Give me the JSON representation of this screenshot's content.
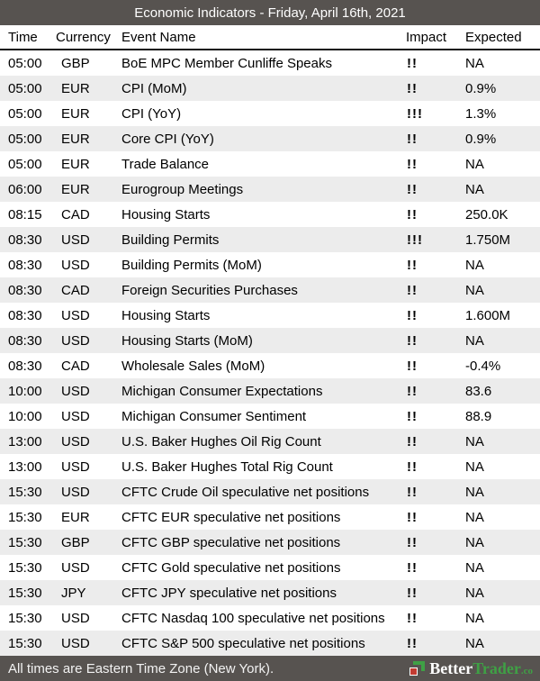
{
  "title_bar": {
    "title": "Economic Indicators - Friday, April 16th, 2021"
  },
  "table": {
    "columns": {
      "time": "Time",
      "currency": "Currency",
      "event": "Event Name",
      "impact": "Impact",
      "expected": "Expected"
    },
    "rows": [
      {
        "time": "05:00",
        "currency": "GBP",
        "event": "BoE MPC Member Cunliffe Speaks",
        "impact": "!!",
        "expected": "NA"
      },
      {
        "time": "05:00",
        "currency": "EUR",
        "event": "CPI (MoM)",
        "impact": "!!",
        "expected": "0.9%"
      },
      {
        "time": "05:00",
        "currency": "EUR",
        "event": "CPI (YoY)",
        "impact": "!!!",
        "expected": "1.3%"
      },
      {
        "time": "05:00",
        "currency": "EUR",
        "event": "Core CPI (YoY)",
        "impact": "!!",
        "expected": "0.9%"
      },
      {
        "time": "05:00",
        "currency": "EUR",
        "event": "Trade Balance",
        "impact": "!!",
        "expected": "NA"
      },
      {
        "time": "06:00",
        "currency": "EUR",
        "event": "Eurogroup Meetings",
        "impact": "!!",
        "expected": "NA"
      },
      {
        "time": "08:15",
        "currency": "CAD",
        "event": "Housing Starts",
        "impact": "!!",
        "expected": "250.0K"
      },
      {
        "time": "08:30",
        "currency": "USD",
        "event": "Building Permits",
        "impact": "!!!",
        "expected": "1.750M"
      },
      {
        "time": "08:30",
        "currency": "USD",
        "event": "Building Permits (MoM)",
        "impact": "!!",
        "expected": "NA"
      },
      {
        "time": "08:30",
        "currency": "CAD",
        "event": "Foreign Securities Purchases",
        "impact": "!!",
        "expected": "NA"
      },
      {
        "time": "08:30",
        "currency": "USD",
        "event": "Housing Starts",
        "impact": "!!",
        "expected": "1.600M"
      },
      {
        "time": "08:30",
        "currency": "USD",
        "event": "Housing Starts (MoM)",
        "impact": "!!",
        "expected": "NA"
      },
      {
        "time": "08:30",
        "currency": "CAD",
        "event": "Wholesale Sales (MoM)",
        "impact": "!!",
        "expected": "-0.4%"
      },
      {
        "time": "10:00",
        "currency": "USD",
        "event": "Michigan Consumer Expectations",
        "impact": "!!",
        "expected": "83.6"
      },
      {
        "time": "10:00",
        "currency": "USD",
        "event": "Michigan Consumer Sentiment",
        "impact": "!!",
        "expected": "88.9"
      },
      {
        "time": "13:00",
        "currency": "USD",
        "event": "U.S. Baker Hughes Oil Rig Count",
        "impact": "!!",
        "expected": "NA"
      },
      {
        "time": "13:00",
        "currency": "USD",
        "event": "U.S. Baker Hughes Total Rig Count",
        "impact": "!!",
        "expected": "NA"
      },
      {
        "time": "15:30",
        "currency": "USD",
        "event": "CFTC Crude Oil speculative net positions",
        "impact": "!!",
        "expected": "NA"
      },
      {
        "time": "15:30",
        "currency": "EUR",
        "event": "CFTC EUR speculative net positions",
        "impact": "!!",
        "expected": "NA"
      },
      {
        "time": "15:30",
        "currency": "GBP",
        "event": "CFTC GBP speculative net positions",
        "impact": "!!",
        "expected": "NA"
      },
      {
        "time": "15:30",
        "currency": "USD",
        "event": "CFTC Gold speculative net positions",
        "impact": "!!",
        "expected": "NA"
      },
      {
        "time": "15:30",
        "currency": "JPY",
        "event": "CFTC JPY speculative net positions",
        "impact": "!!",
        "expected": "NA"
      },
      {
        "time": "15:30",
        "currency": "USD",
        "event": "CFTC Nasdaq 100 speculative net positions",
        "impact": "!!",
        "expected": "NA"
      },
      {
        "time": "15:30",
        "currency": "USD",
        "event": "CFTC S&P 500 speculative net positions",
        "impact": "!!",
        "expected": "NA"
      }
    ]
  },
  "footer": {
    "note": "All times are Eastern Time Zone (New York).",
    "logo": {
      "part1": "Better",
      "part2": "Trader",
      "suffix": ".co"
    }
  },
  "colors": {
    "bar_background": "#575350",
    "row_alternate": "#ececec",
    "header_border": "#111111",
    "logo_green": "#3fa045",
    "logo_red": "#c23b31"
  }
}
